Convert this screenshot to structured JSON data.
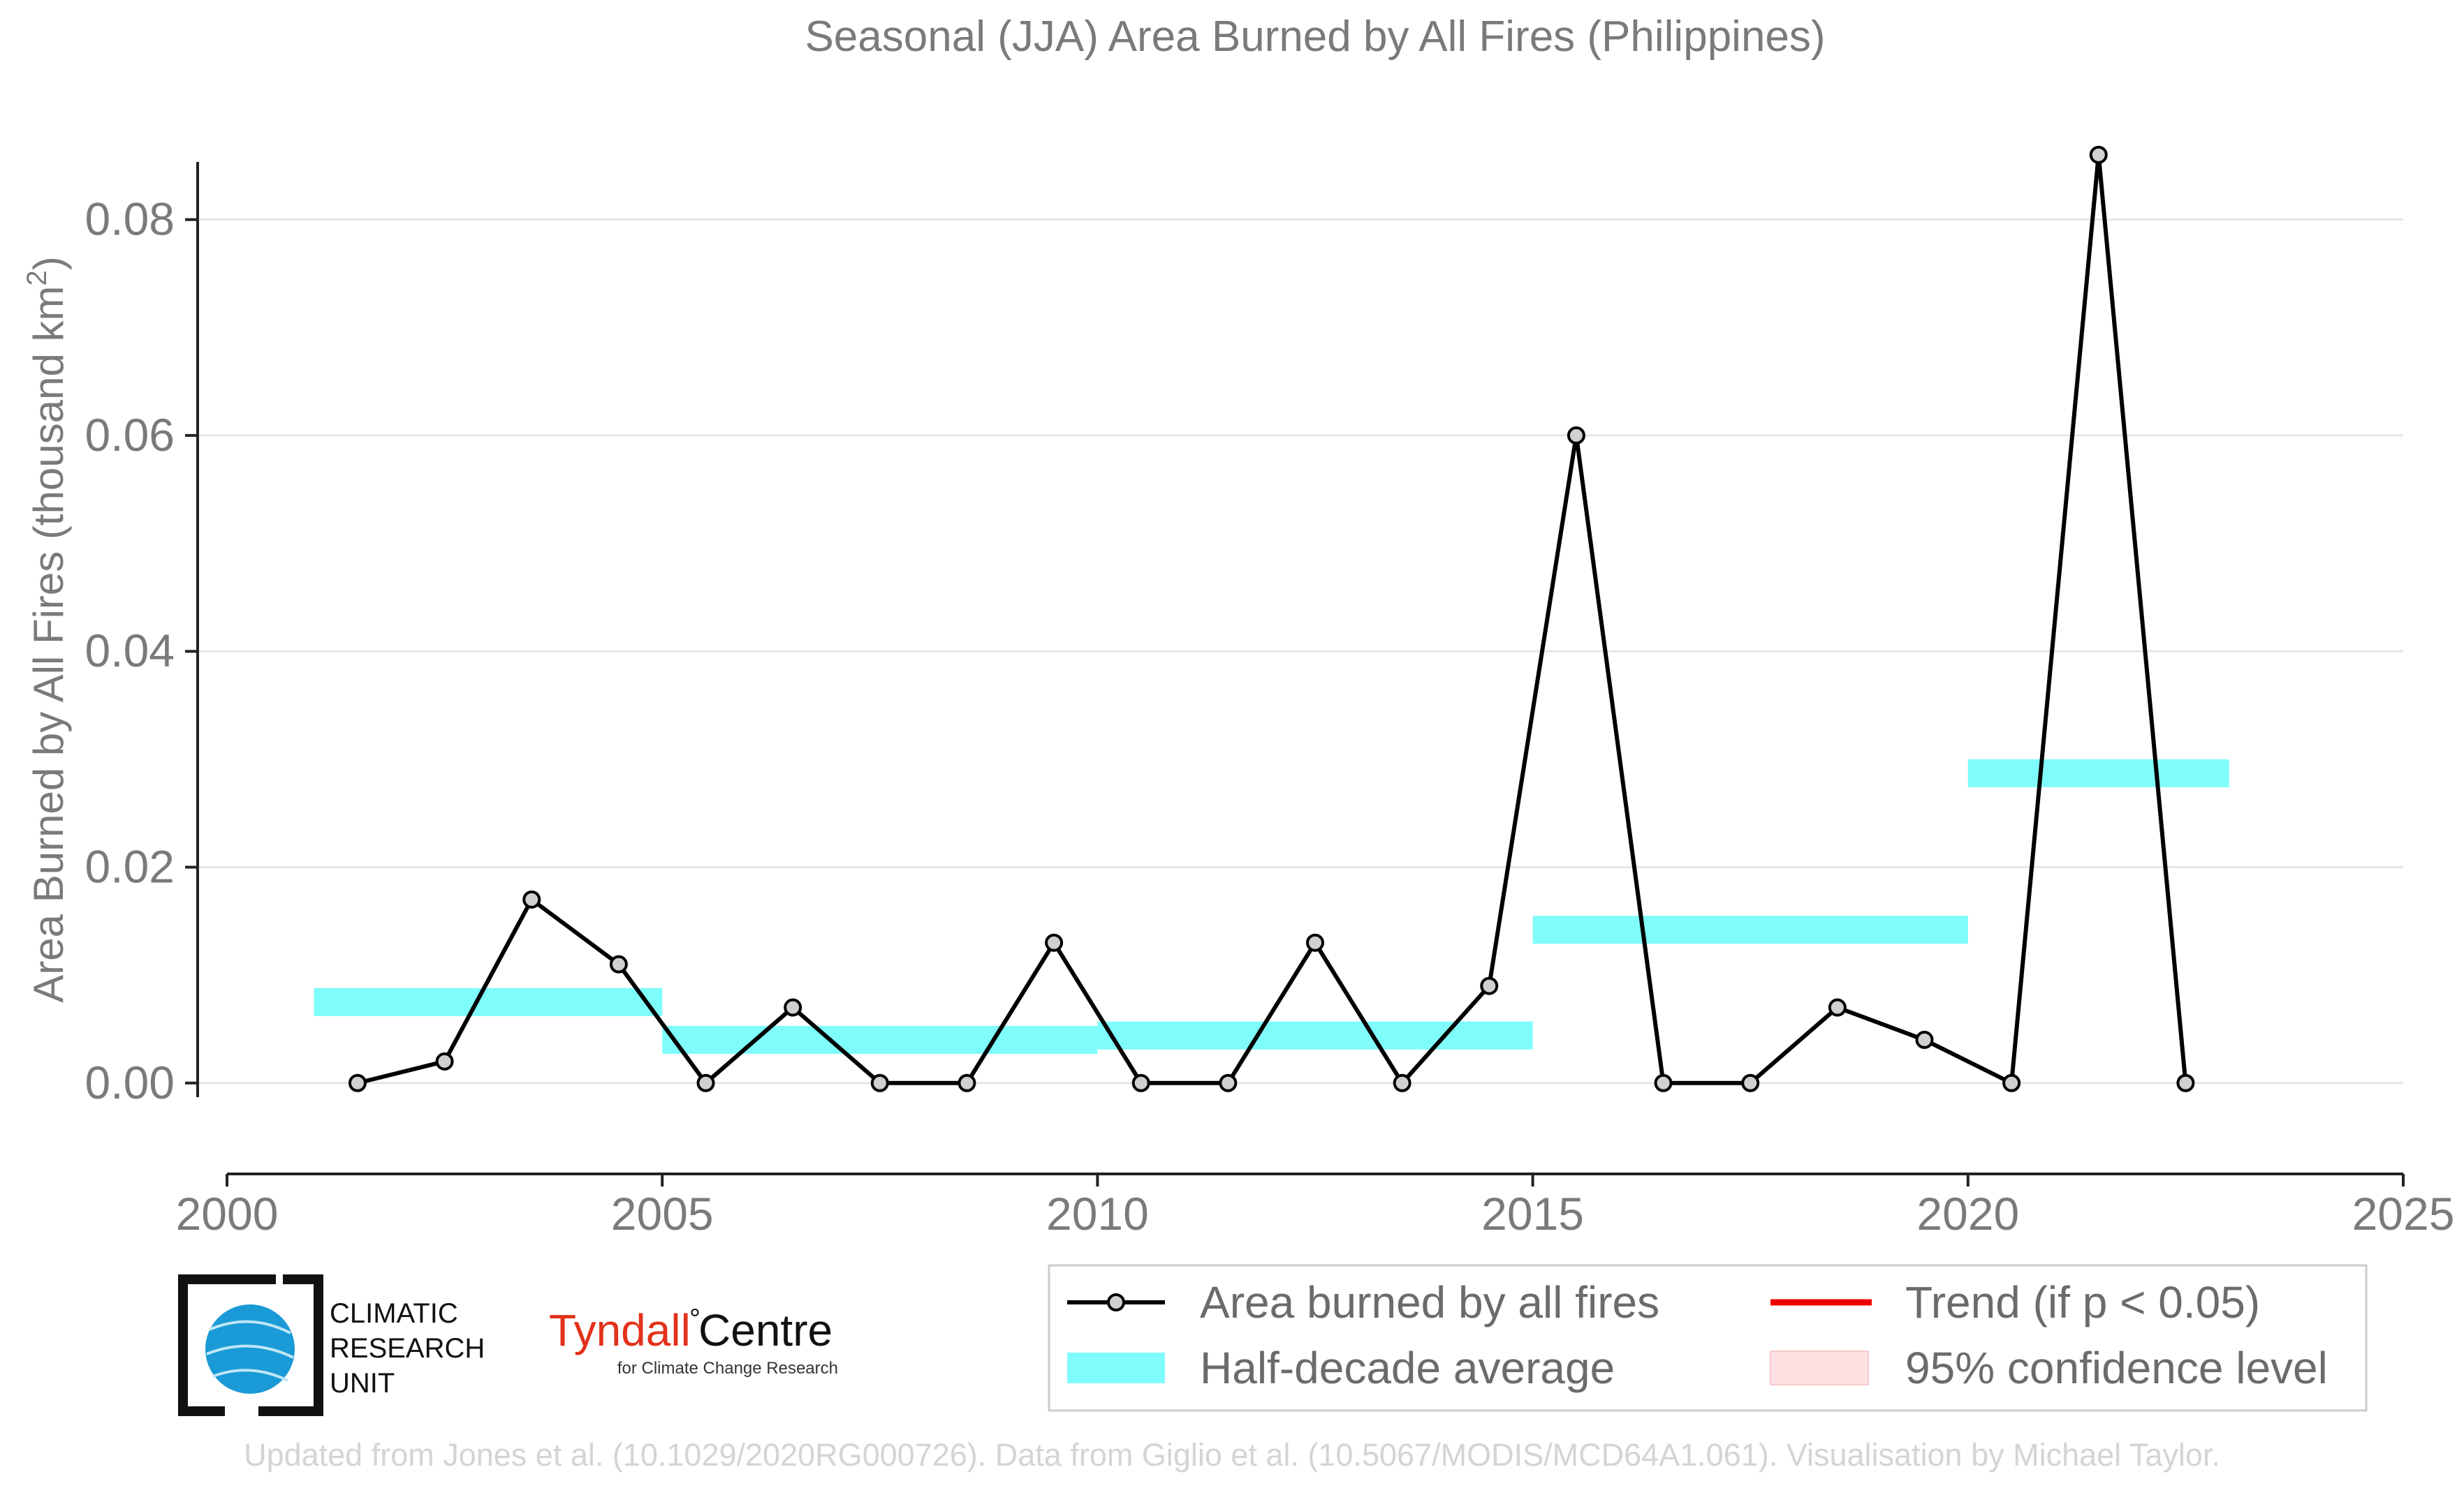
{
  "chart_data": {
    "type": "line",
    "title": "Seasonal (JJA) Area Burned by All Fires (Philippines)",
    "xlabel": "",
    "ylabel": "Area Burned by All Fires (thousand km",
    "ylabel_sup": "2",
    "ylabel_end": ")",
    "xlim": [
      2000,
      2025
    ],
    "ylim": [
      -0.007,
      0.09
    ],
    "x_ticks": [
      2000,
      2005,
      2010,
      2015,
      2020,
      2025
    ],
    "y_ticks": [
      0.0,
      0.02,
      0.04,
      0.06,
      0.08
    ],
    "y_tick_labels": [
      "0.00",
      "0.02",
      "0.04",
      "0.06",
      "0.08"
    ],
    "grid": true,
    "series": [
      {
        "name": "Area burned by all fires",
        "color": "#000000",
        "marker_fill": "#d0d0d0",
        "x": [
          2001.5,
          2002.5,
          2003.5,
          2004.5,
          2005.5,
          2006.5,
          2007.5,
          2008.5,
          2009.5,
          2010.5,
          2011.5,
          2012.5,
          2013.5,
          2014.5,
          2015.5,
          2016.5,
          2017.5,
          2018.5,
          2019.5,
          2020.5,
          2021.5,
          2022.5
        ],
        "values": [
          0.0,
          0.002,
          0.017,
          0.011,
          0.0,
          0.007,
          0.0,
          0.0,
          0.013,
          0.0,
          0.0,
          0.013,
          0.0,
          0.009,
          0.06,
          0.0,
          0.0,
          0.007,
          0.004,
          0.0,
          0.086,
          0.0
        ]
      }
    ],
    "half_decade_average": {
      "name": "Half-decade average",
      "color": "#7ffcfc",
      "segments": [
        {
          "x0": 2001,
          "x1": 2005,
          "value": 0.0075
        },
        {
          "x0": 2005,
          "x1": 2010,
          "value": 0.004
        },
        {
          "x0": 2010,
          "x1": 2015,
          "value": 0.0044
        },
        {
          "x0": 2015,
          "x1": 2020,
          "value": 0.0142
        },
        {
          "x0": 2020,
          "x1": 2023,
          "value": 0.0287
        }
      ]
    },
    "legend": {
      "placement": "bottom-right",
      "entries": [
        {
          "label": "Area burned by all fires",
          "kind": "line-marker",
          "color": "#000000"
        },
        {
          "label": "Trend (if p < 0.05)",
          "kind": "line",
          "color": "#ee0000"
        },
        {
          "label": "Half-decade average",
          "kind": "band",
          "color": "#7ffcfc"
        },
        {
          "label": "95% confidence level",
          "kind": "box",
          "color": "#fde0e2"
        }
      ]
    }
  },
  "logos": {
    "cru": {
      "line1": "CLIMATIC",
      "line2": "RESEARCH",
      "line3": "UNIT",
      "globe_color": "#1a9ad6"
    },
    "tyndall": {
      "name": "Tyndall",
      "degree": "°",
      "name2": "Centre",
      "tagline": "for Climate Change Research",
      "name_color": "#e3311a"
    }
  },
  "footer": "Updated from Jones et al. (10.1029/2020RG000726). Data from Giglio et al. (10.5067/MODIS/MCD64A1.061). Visualisation by Michael Taylor."
}
